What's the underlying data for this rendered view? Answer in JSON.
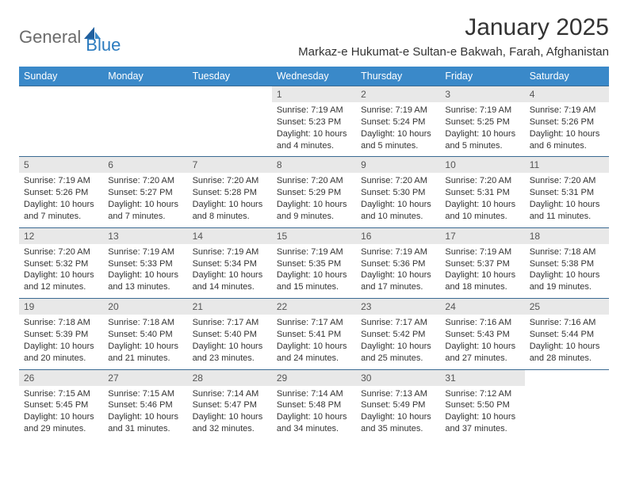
{
  "logo": {
    "general": "General",
    "blue": "Blue"
  },
  "title": "January 2025",
  "location": "Markaz-e Hukumat-e Sultan-e Bakwah, Farah, Afghanistan",
  "colors": {
    "header_bg": "#3a89c9",
    "header_text": "#ffffff",
    "daynum_bg": "#e8e8e8",
    "daynum_text": "#555555",
    "border": "#3a6a92",
    "body_text": "#333333",
    "logo_gray": "#6b6b6b",
    "logo_blue": "#2b7bbf"
  },
  "typography": {
    "title_size": 30,
    "location_size": 15,
    "header_size": 12.5,
    "daynum_size": 12,
    "detail_size": 11
  },
  "weekdays": [
    "Sunday",
    "Monday",
    "Tuesday",
    "Wednesday",
    "Thursday",
    "Friday",
    "Saturday"
  ],
  "weeks": [
    [
      null,
      null,
      null,
      {
        "n": "1",
        "sr": "7:19 AM",
        "ss": "5:23 PM",
        "dl": "10 hours and 4 minutes."
      },
      {
        "n": "2",
        "sr": "7:19 AM",
        "ss": "5:24 PM",
        "dl": "10 hours and 5 minutes."
      },
      {
        "n": "3",
        "sr": "7:19 AM",
        "ss": "5:25 PM",
        "dl": "10 hours and 5 minutes."
      },
      {
        "n": "4",
        "sr": "7:19 AM",
        "ss": "5:26 PM",
        "dl": "10 hours and 6 minutes."
      }
    ],
    [
      {
        "n": "5",
        "sr": "7:19 AM",
        "ss": "5:26 PM",
        "dl": "10 hours and 7 minutes."
      },
      {
        "n": "6",
        "sr": "7:20 AM",
        "ss": "5:27 PM",
        "dl": "10 hours and 7 minutes."
      },
      {
        "n": "7",
        "sr": "7:20 AM",
        "ss": "5:28 PM",
        "dl": "10 hours and 8 minutes."
      },
      {
        "n": "8",
        "sr": "7:20 AM",
        "ss": "5:29 PM",
        "dl": "10 hours and 9 minutes."
      },
      {
        "n": "9",
        "sr": "7:20 AM",
        "ss": "5:30 PM",
        "dl": "10 hours and 10 minutes."
      },
      {
        "n": "10",
        "sr": "7:20 AM",
        "ss": "5:31 PM",
        "dl": "10 hours and 10 minutes."
      },
      {
        "n": "11",
        "sr": "7:20 AM",
        "ss": "5:31 PM",
        "dl": "10 hours and 11 minutes."
      }
    ],
    [
      {
        "n": "12",
        "sr": "7:20 AM",
        "ss": "5:32 PM",
        "dl": "10 hours and 12 minutes."
      },
      {
        "n": "13",
        "sr": "7:19 AM",
        "ss": "5:33 PM",
        "dl": "10 hours and 13 minutes."
      },
      {
        "n": "14",
        "sr": "7:19 AM",
        "ss": "5:34 PM",
        "dl": "10 hours and 14 minutes."
      },
      {
        "n": "15",
        "sr": "7:19 AM",
        "ss": "5:35 PM",
        "dl": "10 hours and 15 minutes."
      },
      {
        "n": "16",
        "sr": "7:19 AM",
        "ss": "5:36 PM",
        "dl": "10 hours and 17 minutes."
      },
      {
        "n": "17",
        "sr": "7:19 AM",
        "ss": "5:37 PM",
        "dl": "10 hours and 18 minutes."
      },
      {
        "n": "18",
        "sr": "7:18 AM",
        "ss": "5:38 PM",
        "dl": "10 hours and 19 minutes."
      }
    ],
    [
      {
        "n": "19",
        "sr": "7:18 AM",
        "ss": "5:39 PM",
        "dl": "10 hours and 20 minutes."
      },
      {
        "n": "20",
        "sr": "7:18 AM",
        "ss": "5:40 PM",
        "dl": "10 hours and 21 minutes."
      },
      {
        "n": "21",
        "sr": "7:17 AM",
        "ss": "5:40 PM",
        "dl": "10 hours and 23 minutes."
      },
      {
        "n": "22",
        "sr": "7:17 AM",
        "ss": "5:41 PM",
        "dl": "10 hours and 24 minutes."
      },
      {
        "n": "23",
        "sr": "7:17 AM",
        "ss": "5:42 PM",
        "dl": "10 hours and 25 minutes."
      },
      {
        "n": "24",
        "sr": "7:16 AM",
        "ss": "5:43 PM",
        "dl": "10 hours and 27 minutes."
      },
      {
        "n": "25",
        "sr": "7:16 AM",
        "ss": "5:44 PM",
        "dl": "10 hours and 28 minutes."
      }
    ],
    [
      {
        "n": "26",
        "sr": "7:15 AM",
        "ss": "5:45 PM",
        "dl": "10 hours and 29 minutes."
      },
      {
        "n": "27",
        "sr": "7:15 AM",
        "ss": "5:46 PM",
        "dl": "10 hours and 31 minutes."
      },
      {
        "n": "28",
        "sr": "7:14 AM",
        "ss": "5:47 PM",
        "dl": "10 hours and 32 minutes."
      },
      {
        "n": "29",
        "sr": "7:14 AM",
        "ss": "5:48 PM",
        "dl": "10 hours and 34 minutes."
      },
      {
        "n": "30",
        "sr": "7:13 AM",
        "ss": "5:49 PM",
        "dl": "10 hours and 35 minutes."
      },
      {
        "n": "31",
        "sr": "7:12 AM",
        "ss": "5:50 PM",
        "dl": "10 hours and 37 minutes."
      },
      null
    ]
  ],
  "labels": {
    "sunrise": "Sunrise:",
    "sunset": "Sunset:",
    "daylight": "Daylight:"
  }
}
